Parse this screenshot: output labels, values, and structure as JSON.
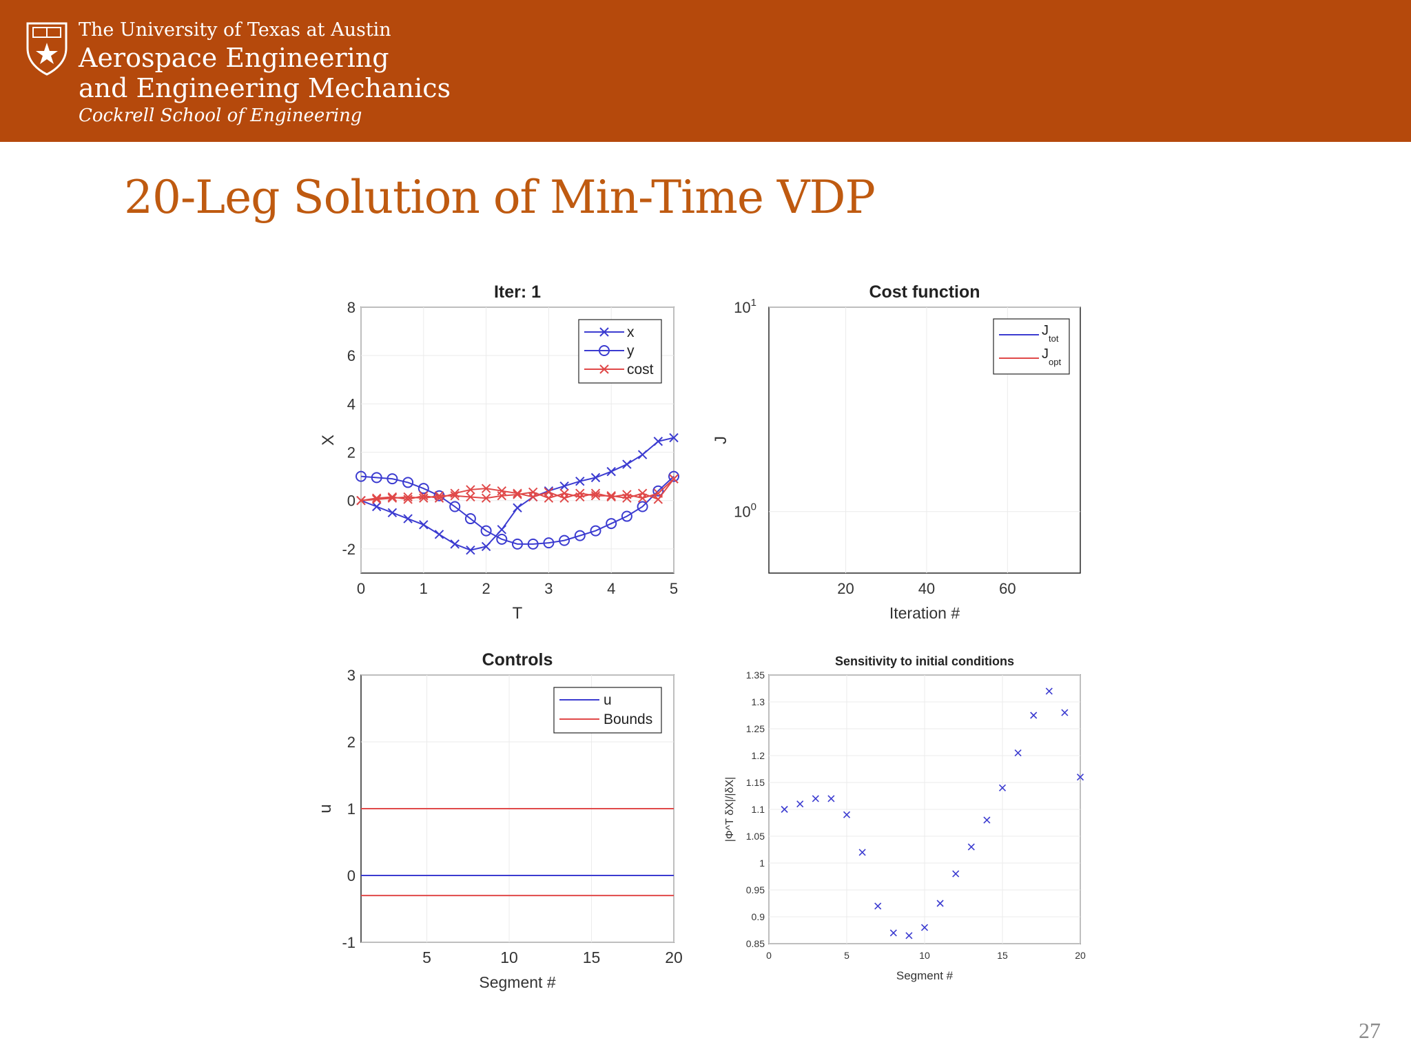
{
  "header": {
    "university": "The University of Texas at Austin",
    "department_line1": "Aerospace Engineering",
    "department_line2": "and Engineering Mechanics",
    "school": "Cockrell School of Engineering",
    "background_color": "#b5490c"
  },
  "slide": {
    "title": "20-Leg Solution of Min-Time VDP",
    "title_color": "#bf5a10",
    "page_number": "27"
  },
  "chart_data": [
    {
      "id": "states",
      "type": "line",
      "title": "Iter: 1",
      "xlabel": "T",
      "ylabel": "X",
      "xlim": [
        0,
        5
      ],
      "ylim": [
        -3,
        8
      ],
      "xticks": [
        "0",
        "1",
        "2",
        "3",
        "4",
        "5"
      ],
      "yticks": [
        "-2",
        "0",
        "2",
        "4",
        "6",
        "8"
      ],
      "grid": true,
      "legend": "top-right",
      "series": [
        {
          "name": "x",
          "color": "#3b3bd0",
          "marker": "x",
          "x": [
            0,
            0.25,
            0.5,
            0.75,
            1,
            1.25,
            1.5,
            1.75,
            2,
            2.25,
            2.5,
            2.75,
            3,
            3.25,
            3.5,
            3.75,
            4,
            4.25,
            4.5,
            4.75,
            5
          ],
          "y": [
            0,
            -0.25,
            -0.5,
            -0.75,
            -1.0,
            -1.4,
            -1.8,
            -2.05,
            -1.9,
            -1.2,
            -0.3,
            0.15,
            0.4,
            0.6,
            0.8,
            0.95,
            1.2,
            1.5,
            1.9,
            2.45,
            2.6
          ]
        },
        {
          "name": "y",
          "color": "#3b3bd0",
          "marker": "o",
          "x": [
            0,
            0.25,
            0.5,
            0.75,
            1,
            1.25,
            1.5,
            1.75,
            2,
            2.25,
            2.5,
            2.75,
            3,
            3.25,
            3.5,
            3.75,
            4,
            4.25,
            4.5,
            4.75,
            5
          ],
          "y": [
            1.0,
            0.95,
            0.9,
            0.75,
            0.5,
            0.2,
            -0.25,
            -0.75,
            -1.25,
            -1.6,
            -1.8,
            -1.8,
            -1.75,
            -1.65,
            -1.45,
            -1.25,
            -0.95,
            -0.65,
            -0.25,
            0.4,
            1.0
          ]
        },
        {
          "name": "cost",
          "color": "#e04848",
          "marker": "x",
          "x": [
            0,
            0.25,
            0.5,
            0.75,
            1,
            1.25,
            1.5,
            1.75,
            2,
            2.25,
            2.5,
            2.75,
            3,
            3.25,
            3.5,
            3.75,
            4,
            4.25,
            4.5,
            4.75,
            5
          ],
          "y": [
            0,
            0.1,
            0.15,
            0.05,
            0.2,
            0.1,
            0.3,
            0.45,
            0.5,
            0.4,
            0.3,
            0.15,
            0.35,
            0.1,
            0.3,
            0.2,
            0.2,
            0.1,
            0.3,
            0.05,
            0.9
          ],
          "y_alt": [
            0,
            0.05,
            0.1,
            0.15,
            0.1,
            0.2,
            0.2,
            0.15,
            0.1,
            0.2,
            0.25,
            0.35,
            0.1,
            0.3,
            0.15,
            0.3,
            0.15,
            0.25,
            0.1,
            0.3,
            0.9
          ]
        }
      ]
    },
    {
      "id": "cost",
      "type": "line",
      "title": "Cost function",
      "xlabel": "Iteration #",
      "ylabel": "J",
      "xlim": [
        1,
        78
      ],
      "ylim": [
        0.5,
        10
      ],
      "log_y": true,
      "xticks": [
        "20",
        "40",
        "60"
      ],
      "ytick_base": "10",
      "ytick_exponents": [
        "0",
        "1"
      ],
      "grid": true,
      "legend": "top-right",
      "series": [
        {
          "name": "J",
          "subscript": "tot",
          "color": "#3b3bd0",
          "values": []
        },
        {
          "name": "J",
          "subscript": "opt",
          "color": "#e04848",
          "values": []
        }
      ]
    },
    {
      "id": "controls",
      "type": "line",
      "title": "Controls",
      "xlabel": "Segment #",
      "ylabel": "u",
      "xlim": [
        1,
        20
      ],
      "ylim": [
        -1,
        3
      ],
      "xticks": [
        "5",
        "10",
        "15",
        "20"
      ],
      "yticks": [
        "-1",
        "0",
        "1",
        "2",
        "3"
      ],
      "grid": true,
      "legend": "top-right",
      "series": [
        {
          "name": "u",
          "color": "#3b3bd0",
          "x": [
            1,
            20
          ],
          "y": [
            0,
            0
          ]
        },
        {
          "name": "Bounds",
          "color": "#e04848",
          "x": [
            1,
            20
          ],
          "y": [
            1,
            1
          ],
          "lower": -0.3
        }
      ]
    },
    {
      "id": "sensitivity",
      "type": "scatter",
      "title": "Sensitivity to initial conditions",
      "xlabel": "Segment #",
      "ylabel": "|Φ^T δX|/|δX|",
      "xlim": [
        0,
        20
      ],
      "ylim": [
        0.85,
        1.35
      ],
      "xticks": [
        "0",
        "5",
        "10",
        "15",
        "20"
      ],
      "yticks": [
        "0.85",
        "0.9",
        "0.95",
        "1",
        "1.05",
        "1.1",
        "1.15",
        "1.2",
        "1.25",
        "1.3",
        "1.35"
      ],
      "grid": true,
      "series": [
        {
          "color": "#3b3bd0",
          "marker": "x",
          "x": [
            1,
            2,
            3,
            4,
            5,
            6,
            7,
            8,
            9,
            10,
            11,
            12,
            13,
            14,
            15,
            16,
            17,
            18,
            19,
            20
          ],
          "y": [
            1.1,
            1.11,
            1.12,
            1.12,
            1.09,
            1.02,
            0.92,
            0.87,
            0.865,
            0.88,
            0.925,
            0.98,
            1.03,
            1.08,
            1.14,
            1.205,
            1.275,
            1.32,
            1.28,
            1.16
          ]
        }
      ]
    }
  ]
}
